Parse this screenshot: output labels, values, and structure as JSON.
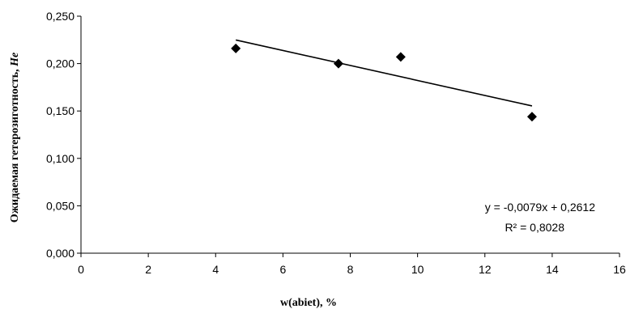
{
  "chart_data": {
    "type": "scatter",
    "title": "",
    "xlabel": "w(abiet),  %",
    "ylabel_main": "Ожидаемая гетерозиготность, ",
    "ylabel_symbol": "He",
    "xlim": [
      0,
      16
    ],
    "ylim": [
      0,
      0.25
    ],
    "x_ticks": [
      "0",
      "2",
      "4",
      "6",
      "8",
      "10",
      "12",
      "14",
      "16"
    ],
    "y_ticks": [
      "0,000",
      "0,050",
      "0,100",
      "0,150",
      "0,200",
      "0,250"
    ],
    "grid": false,
    "legend": "none",
    "series": [
      {
        "points": [
          {
            "x": 4.6,
            "y": 0.216
          },
          {
            "x": 7.65,
            "y": 0.2
          },
          {
            "x": 9.5,
            "y": 0.207
          },
          {
            "x": 13.4,
            "y": 0.144
          }
        ]
      }
    ],
    "trendline": {
      "slope": -0.0079,
      "intercept": 0.2612,
      "x_range": [
        4.6,
        13.4
      ],
      "equation_text": "y = -0,0079x + 0,2612",
      "r2_text": "R² = 0,8028"
    }
  }
}
